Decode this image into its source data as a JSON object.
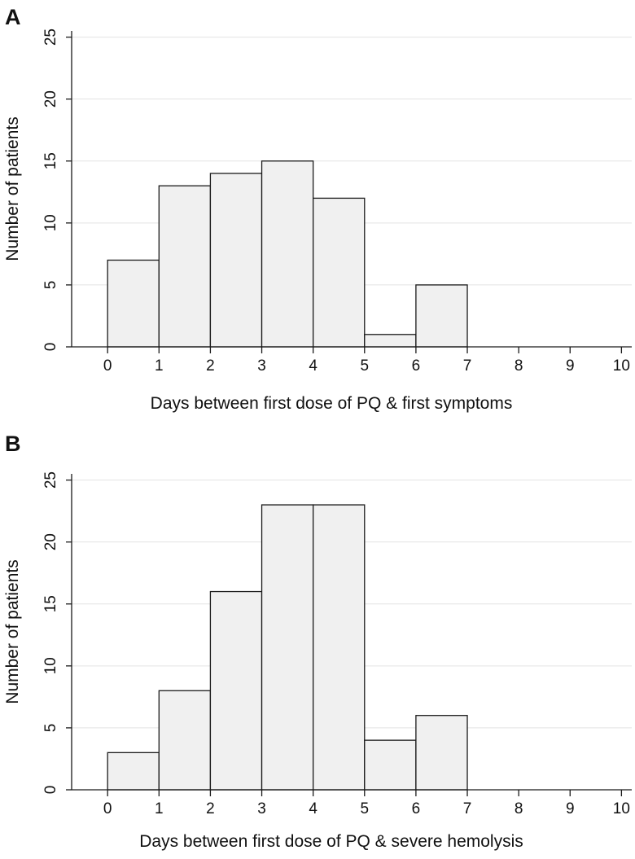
{
  "chart_data": [
    {
      "type": "bar",
      "panel_label": "A",
      "xlabel": "Days between first dose of PQ & first symptoms",
      "ylabel": "Number of patients",
      "x_ticks": [
        0,
        1,
        2,
        3,
        4,
        5,
        6,
        7,
        8,
        9,
        10
      ],
      "y_ticks": [
        0,
        5,
        10,
        15,
        20,
        25
      ],
      "xlim": [
        -0.7,
        10.2
      ],
      "ylim": [
        0,
        25.5
      ],
      "grid": true,
      "bins": [
        {
          "from": 0,
          "to": 1,
          "value": 7
        },
        {
          "from": 1,
          "to": 2,
          "value": 13
        },
        {
          "from": 2,
          "to": 3,
          "value": 14
        },
        {
          "from": 3,
          "to": 4,
          "value": 15
        },
        {
          "from": 4,
          "to": 5,
          "value": 12
        },
        {
          "from": 5,
          "to": 6,
          "value": 1
        },
        {
          "from": 6,
          "to": 7,
          "value": 5
        }
      ]
    },
    {
      "type": "bar",
      "panel_label": "B",
      "xlabel": "Days between first dose of PQ & severe hemolysis",
      "ylabel": "Number of patients",
      "x_ticks": [
        0,
        1,
        2,
        3,
        4,
        5,
        6,
        7,
        8,
        9,
        10
      ],
      "y_ticks": [
        0,
        5,
        10,
        15,
        20,
        25
      ],
      "xlim": [
        -0.7,
        10.2
      ],
      "ylim": [
        0,
        25.5
      ],
      "grid": true,
      "bins": [
        {
          "from": 0,
          "to": 1,
          "value": 3
        },
        {
          "from": 1,
          "to": 2,
          "value": 8
        },
        {
          "from": 2,
          "to": 3,
          "value": 16
        },
        {
          "from": 3,
          "to": 4,
          "value": 23
        },
        {
          "from": 4,
          "to": 5,
          "value": 23
        },
        {
          "from": 5,
          "to": 6,
          "value": 4
        },
        {
          "from": 6,
          "to": 7,
          "value": 6
        }
      ]
    }
  ],
  "colors": {
    "bar_fill": "#f0f0f0",
    "bar_stroke": "#1a1a1a",
    "axis": "#1a1a1a",
    "grid": "#e3e3e3",
    "text": "#111111"
  }
}
